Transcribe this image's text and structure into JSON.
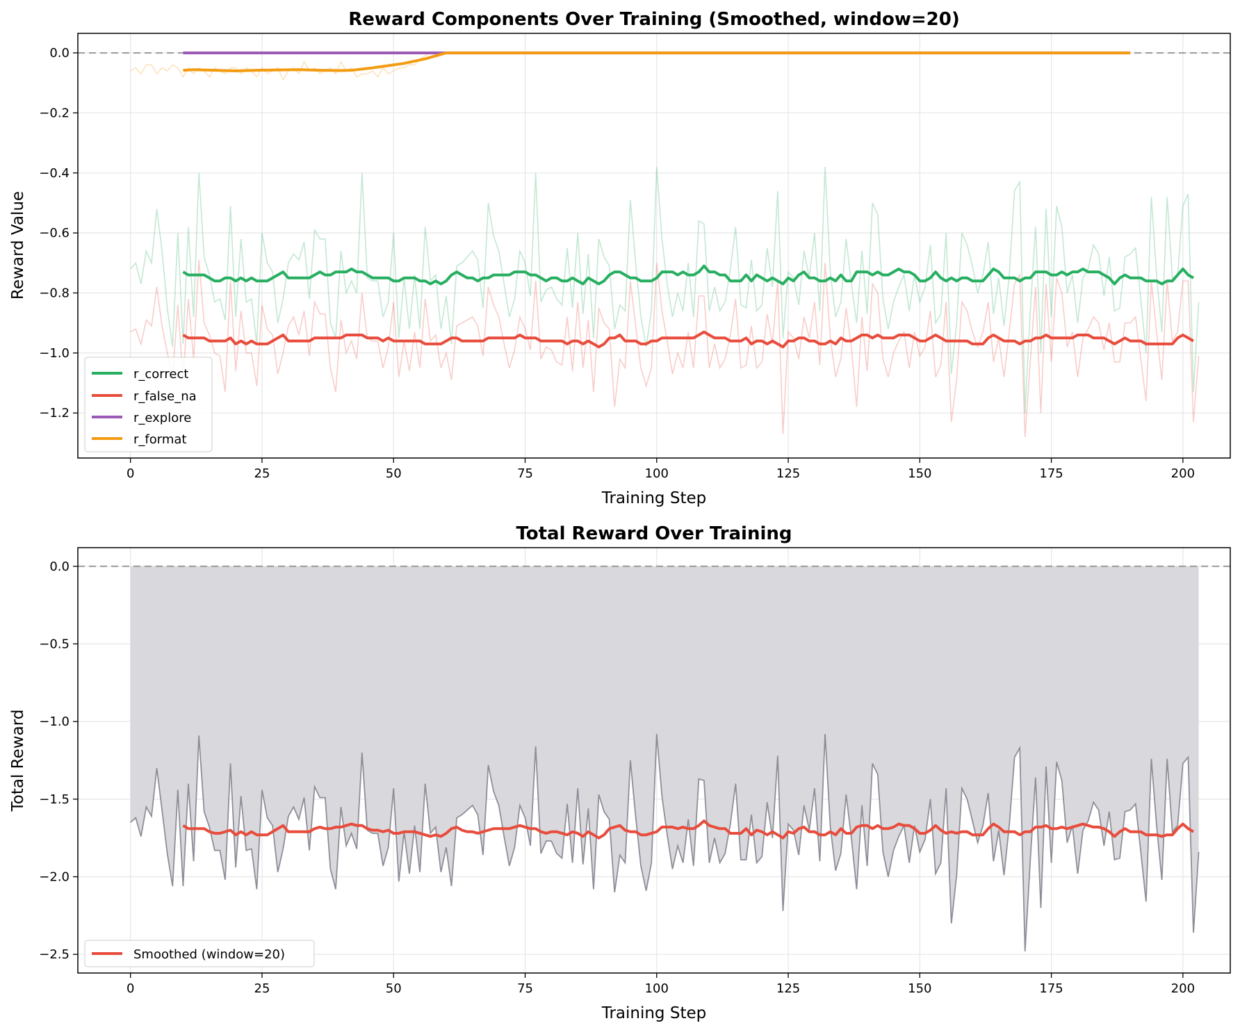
{
  "chart_data": [
    {
      "type": "line",
      "title": "Reward Components Over Training (Smoothed, window=20)",
      "xlabel": "Training Step",
      "ylabel": "Reward Value",
      "xlim": [
        -10,
        209
      ],
      "ylim": [
        -1.35,
        0.065
      ],
      "xticks": [
        0,
        25,
        50,
        75,
        100,
        125,
        150,
        175,
        200
      ],
      "yticks": [
        0.0,
        -0.2,
        -0.4,
        -0.6,
        -0.8,
        -1.0,
        -1.2
      ],
      "ytick_labels": [
        "0.0",
        "−0.2",
        "−0.4",
        "−0.6",
        "−0.8",
        "−1.0",
        "−1.2"
      ],
      "grid": true,
      "legend_position": "lower-left",
      "reference_line": 0.0,
      "smoothing_window": 20,
      "series": [
        {
          "name": "r_correct",
          "color": "#27ae60",
          "raw": [
            -0.72,
            -0.7,
            -0.77,
            -0.66,
            -0.7,
            -0.52,
            -0.66,
            -0.85,
            -0.98,
            -0.6,
            -0.97,
            -0.58,
            -0.88,
            -0.4,
            -0.68,
            -0.74,
            -0.83,
            -0.82,
            -0.89,
            -0.51,
            -0.88,
            -0.62,
            -0.83,
            -0.82,
            -0.97,
            -0.6,
            -0.7,
            -0.73,
            -0.9,
            -0.82,
            -0.7,
            -0.67,
            -0.69,
            -0.63,
            -0.82,
            -0.59,
            -0.62,
            -0.62,
            -0.9,
            -0.95,
            -0.66,
            -0.8,
            -0.76,
            -0.8,
            -0.4,
            -0.75,
            -0.76,
            -0.76,
            -0.88,
            -0.83,
            -0.6,
            -0.95,
            -0.75,
            -0.92,
            -0.74,
            -0.92,
            -0.58,
            -0.76,
            -0.74,
            -0.92,
            -0.81,
            -0.97,
            -0.71,
            -0.7,
            -0.68,
            -0.66,
            -0.69,
            -0.85,
            -0.5,
            -0.61,
            -0.66,
            -0.77,
            -0.88,
            -0.82,
            -0.66,
            -0.7,
            -0.81,
            -0.4,
            -0.83,
            -0.79,
            -0.78,
            -0.82,
            -0.84,
            -0.65,
            -0.85,
            -0.6,
            -0.87,
            -0.67,
            -0.95,
            -0.62,
            -0.68,
            -0.71,
            -0.92,
            -0.84,
            -0.86,
            -0.49,
            -0.7,
            -0.88,
            -0.98,
            -0.86,
            -0.38,
            -0.62,
            -0.77,
            -0.88,
            -0.8,
            -0.86,
            -0.7,
            -0.88,
            -0.56,
            -0.57,
            -0.86,
            -0.78,
            -0.86,
            -0.83,
            -0.72,
            -0.58,
            -0.84,
            -0.85,
            -0.69,
            -0.86,
            -0.84,
            -0.65,
            -0.78,
            -0.46,
            -0.95,
            -0.73,
            -0.75,
            -0.84,
            -0.66,
            -0.75,
            -0.6,
            -0.86,
            -0.38,
            -0.73,
            -0.88,
            -0.83,
            -0.62,
            -0.77,
            -0.9,
            -0.66,
            -0.87,
            -0.5,
            -0.54,
            -0.82,
            -0.92,
            -0.83,
            -0.78,
            -0.74,
            -0.86,
            -0.74,
            -0.83,
            -0.78,
            -0.64,
            -0.9,
            -0.87,
            -0.6,
            -1.07,
            -0.9,
            -0.6,
            -0.64,
            -0.71,
            -0.8,
            -0.74,
            -0.63,
            -0.87,
            -0.75,
            -0.91,
            -0.74,
            -0.46,
            -0.43,
            -1.2,
            -0.86,
            -0.58,
            -1.0,
            -0.52,
            -0.88,
            -0.51,
            -0.58,
            -0.8,
            -0.74,
            -0.9,
            -0.75,
            -0.72,
            -0.64,
            -0.67,
            -0.81,
            -0.68,
            -0.86,
            -0.85,
            -0.68,
            -0.67,
            -0.65,
            -0.82,
            -1.0,
            -0.48,
            -0.74,
            -0.93,
            -0.48,
            -0.75,
            -0.74,
            -0.51,
            -0.47,
            -1.13,
            -0.83
          ],
          "smoothed": [
            -0.73,
            -0.74,
            -0.74,
            -0.74,
            -0.74,
            -0.75,
            -0.76,
            -0.76,
            -0.75,
            -0.75,
            -0.76,
            -0.75,
            -0.76,
            -0.75,
            -0.76,
            -0.76,
            -0.76,
            -0.75,
            -0.74,
            -0.73,
            -0.75,
            -0.75,
            -0.75,
            -0.75,
            -0.75,
            -0.74,
            -0.73,
            -0.74,
            -0.74,
            -0.73,
            -0.73,
            -0.73,
            -0.72,
            -0.73,
            -0.73,
            -0.74,
            -0.75,
            -0.75,
            -0.75,
            -0.75,
            -0.76,
            -0.76,
            -0.75,
            -0.75,
            -0.75,
            -0.76,
            -0.76,
            -0.77,
            -0.76,
            -0.77,
            -0.76,
            -0.74,
            -0.73,
            -0.74,
            -0.75,
            -0.75,
            -0.76,
            -0.75,
            -0.75,
            -0.74,
            -0.74,
            -0.74,
            -0.74,
            -0.73,
            -0.73,
            -0.73,
            -0.74,
            -0.74,
            -0.75,
            -0.76,
            -0.75,
            -0.75,
            -0.76,
            -0.76,
            -0.75,
            -0.76,
            -0.77,
            -0.75,
            -0.76,
            -0.77,
            -0.76,
            -0.74,
            -0.73,
            -0.73,
            -0.74,
            -0.75,
            -0.75,
            -0.76,
            -0.76,
            -0.76,
            -0.75,
            -0.73,
            -0.73,
            -0.73,
            -0.74,
            -0.73,
            -0.74,
            -0.74,
            -0.73,
            -0.71,
            -0.73,
            -0.73,
            -0.74,
            -0.74,
            -0.76,
            -0.76,
            -0.76,
            -0.74,
            -0.76,
            -0.74,
            -0.75,
            -0.76,
            -0.75,
            -0.76,
            -0.77,
            -0.75,
            -0.76,
            -0.74,
            -0.73,
            -0.75,
            -0.75,
            -0.76,
            -0.76,
            -0.75,
            -0.76,
            -0.74,
            -0.76,
            -0.76,
            -0.73,
            -0.73,
            -0.73,
            -0.74,
            -0.73,
            -0.74,
            -0.74,
            -0.73,
            -0.72,
            -0.73,
            -0.73,
            -0.74,
            -0.76,
            -0.76,
            -0.75,
            -0.73,
            -0.75,
            -0.76,
            -0.75,
            -0.76,
            -0.75,
            -0.75,
            -0.76,
            -0.76,
            -0.76,
            -0.74,
            -0.72,
            -0.73,
            -0.75,
            -0.75,
            -0.75,
            -0.76,
            -0.75,
            -0.75,
            -0.73,
            -0.73,
            -0.73,
            -0.74,
            -0.74,
            -0.73,
            -0.74,
            -0.73,
            -0.73,
            -0.72,
            -0.73,
            -0.73,
            -0.73,
            -0.74,
            -0.75,
            -0.77,
            -0.75,
            -0.74,
            -0.75,
            -0.75,
            -0.75,
            -0.76,
            -0.76,
            -0.76,
            -0.77,
            -0.76,
            -0.76,
            -0.74,
            -0.72,
            -0.74,
            -0.75
          ]
        },
        {
          "name": "r_false_na",
          "color": "#e74c3c",
          "raw": [
            -0.93,
            -0.92,
            -0.97,
            -0.89,
            -0.91,
            -0.78,
            -0.91,
            -1.0,
            -1.08,
            -0.84,
            -1.09,
            -0.82,
            -1.02,
            -0.69,
            -0.9,
            -0.94,
            -1.0,
            -1.01,
            -1.13,
            -0.76,
            -1.06,
            -0.86,
            -1.0,
            -1.0,
            -1.11,
            -0.84,
            -0.92,
            -0.94,
            -1.07,
            -1.0,
            -0.91,
            -0.88,
            -0.94,
            -0.86,
            -1.01,
            -0.83,
            -0.87,
            -0.87,
            -1.05,
            -1.13,
            -0.89,
            -1.0,
            -0.96,
            -1.02,
            -0.8,
            -0.95,
            -0.96,
            -0.96,
            -1.05,
            -0.98,
            -0.83,
            -1.08,
            -0.96,
            -1.06,
            -0.93,
            -1.05,
            -0.82,
            -0.96,
            -0.94,
            -1.05,
            -1.0,
            -1.09,
            -0.91,
            -0.9,
            -0.89,
            -0.88,
            -0.91,
            -1.01,
            -0.78,
            -0.84,
            -0.88,
            -0.97,
            -1.05,
            -0.99,
            -0.88,
            -0.92,
            -0.99,
            -0.76,
            -1.02,
            -0.98,
            -0.99,
            -1.03,
            -1.04,
            -0.88,
            -1.06,
            -0.83,
            -1.05,
            -0.89,
            -1.13,
            -0.85,
            -0.9,
            -0.92,
            -1.18,
            -1.02,
            -1.05,
            -0.76,
            -0.91,
            -1.05,
            -1.11,
            -1.05,
            -0.7,
            -0.86,
            -0.96,
            -1.07,
            -1.0,
            -1.05,
            -0.93,
            -1.05,
            -0.81,
            -0.81,
            -1.05,
            -0.97,
            -1.05,
            -1.02,
            -0.94,
            -0.82,
            -1.05,
            -1.04,
            -0.91,
            -1.05,
            -1.03,
            -0.87,
            -0.97,
            -0.76,
            -1.27,
            -0.93,
            -0.95,
            -1.02,
            -0.88,
            -0.95,
            -0.83,
            -1.04,
            -0.7,
            -0.95,
            -1.08,
            -1.02,
            -0.85,
            -0.98,
            -1.18,
            -0.88,
            -1.06,
            -0.77,
            -0.8,
            -1.02,
            -1.08,
            -1.0,
            -0.96,
            -0.93,
            -1.05,
            -0.93,
            -1.01,
            -0.98,
            -0.86,
            -1.08,
            -1.04,
            -0.83,
            -1.23,
            -1.09,
            -0.83,
            -0.86,
            -0.93,
            -0.98,
            -0.93,
            -0.83,
            -1.03,
            -0.95,
            -1.08,
            -0.93,
            -0.77,
            -0.74,
            -1.28,
            -1.03,
            -0.78,
            -1.2,
            -0.77,
            -1.03,
            -0.75,
            -0.8,
            -0.98,
            -0.93,
            -1.08,
            -0.95,
            -0.92,
            -0.88,
            -0.9,
            -0.99,
            -0.9,
            -1.03,
            -1.03,
            -0.9,
            -0.9,
            -0.88,
            -1.02,
            -1.16,
            -0.76,
            -0.93,
            -1.09,
            -0.76,
            -0.96,
            -0.93,
            -0.76,
            -0.76,
            -1.23,
            -1.01
          ],
          "smoothed": [
            -0.94,
            -0.95,
            -0.95,
            -0.95,
            -0.95,
            -0.96,
            -0.96,
            -0.96,
            -0.96,
            -0.95,
            -0.97,
            -0.96,
            -0.97,
            -0.96,
            -0.97,
            -0.97,
            -0.97,
            -0.96,
            -0.95,
            -0.94,
            -0.96,
            -0.96,
            -0.96,
            -0.96,
            -0.96,
            -0.95,
            -0.95,
            -0.95,
            -0.95,
            -0.95,
            -0.95,
            -0.94,
            -0.94,
            -0.94,
            -0.94,
            -0.95,
            -0.95,
            -0.95,
            -0.96,
            -0.95,
            -0.96,
            -0.96,
            -0.96,
            -0.96,
            -0.96,
            -0.96,
            -0.97,
            -0.97,
            -0.97,
            -0.97,
            -0.96,
            -0.95,
            -0.95,
            -0.96,
            -0.96,
            -0.96,
            -0.96,
            -0.96,
            -0.95,
            -0.95,
            -0.95,
            -0.95,
            -0.95,
            -0.95,
            -0.94,
            -0.95,
            -0.95,
            -0.95,
            -0.96,
            -0.96,
            -0.96,
            -0.96,
            -0.96,
            -0.97,
            -0.96,
            -0.96,
            -0.97,
            -0.96,
            -0.97,
            -0.98,
            -0.97,
            -0.95,
            -0.95,
            -0.94,
            -0.96,
            -0.96,
            -0.96,
            -0.97,
            -0.97,
            -0.96,
            -0.96,
            -0.95,
            -0.95,
            -0.95,
            -0.95,
            -0.95,
            -0.95,
            -0.95,
            -0.94,
            -0.93,
            -0.94,
            -0.95,
            -0.95,
            -0.95,
            -0.96,
            -0.96,
            -0.96,
            -0.95,
            -0.97,
            -0.96,
            -0.96,
            -0.97,
            -0.96,
            -0.97,
            -0.98,
            -0.96,
            -0.96,
            -0.95,
            -0.95,
            -0.96,
            -0.96,
            -0.97,
            -0.97,
            -0.96,
            -0.97,
            -0.95,
            -0.96,
            -0.96,
            -0.95,
            -0.94,
            -0.94,
            -0.95,
            -0.94,
            -0.95,
            -0.95,
            -0.95,
            -0.94,
            -0.94,
            -0.94,
            -0.95,
            -0.96,
            -0.96,
            -0.95,
            -0.94,
            -0.95,
            -0.96,
            -0.96,
            -0.96,
            -0.96,
            -0.96,
            -0.97,
            -0.97,
            -0.97,
            -0.95,
            -0.94,
            -0.95,
            -0.96,
            -0.96,
            -0.96,
            -0.97,
            -0.96,
            -0.96,
            -0.95,
            -0.95,
            -0.94,
            -0.95,
            -0.95,
            -0.95,
            -0.95,
            -0.95,
            -0.94,
            -0.94,
            -0.94,
            -0.95,
            -0.95,
            -0.95,
            -0.96,
            -0.97,
            -0.96,
            -0.95,
            -0.96,
            -0.96,
            -0.96,
            -0.97,
            -0.97,
            -0.97,
            -0.97,
            -0.97,
            -0.97,
            -0.95,
            -0.94,
            -0.95,
            -0.96
          ]
        },
        {
          "name": "r_explore",
          "color": "#9b59b6",
          "smoothed_start": 10,
          "smoothed_end": 190,
          "value": 0.0
        },
        {
          "name": "r_format",
          "color": "#f39c12",
          "raw": [
            -0.06,
            -0.05,
            -0.07,
            -0.04,
            -0.04,
            -0.07,
            -0.05,
            -0.06,
            -0.04,
            -0.05,
            -0.08,
            -0.05,
            -0.07,
            -0.05,
            -0.06,
            -0.08,
            -0.05,
            -0.06,
            -0.07,
            -0.05,
            -0.05,
            -0.07,
            -0.05,
            -0.06,
            -0.08,
            -0.05,
            -0.07,
            -0.06,
            -0.05,
            -0.09,
            -0.06,
            -0.05,
            -0.07,
            -0.03,
            -0.06,
            -0.05,
            -0.07,
            -0.06,
            -0.05,
            -0.07,
            -0.03,
            -0.06,
            -0.05,
            -0.08,
            -0.07,
            -0.07,
            -0.06,
            -0.08,
            -0.05,
            -0.07,
            -0.06,
            -0.05,
            -0.05,
            -0.04,
            -0.04,
            -0.02,
            -0.01,
            0.0,
            0.0,
            0.0,
            0.0
          ],
          "smoothed_points": [
            [
              10,
              -0.058
            ],
            [
              12,
              -0.056
            ],
            [
              16,
              -0.058
            ],
            [
              20,
              -0.06
            ],
            [
              24,
              -0.058
            ],
            [
              28,
              -0.057
            ],
            [
              32,
              -0.056
            ],
            [
              36,
              -0.058
            ],
            [
              40,
              -0.059
            ],
            [
              42,
              -0.058
            ],
            [
              46,
              -0.05
            ],
            [
              50,
              -0.04
            ],
            [
              52,
              -0.035
            ],
            [
              56,
              -0.02
            ],
            [
              60,
              0.0
            ],
            [
              190,
              0.0
            ]
          ]
        }
      ],
      "legend": [
        "r_correct",
        "r_false_na",
        "r_explore",
        "r_format"
      ]
    },
    {
      "type": "area",
      "title": "Total Reward Over Training",
      "xlabel": "Training Step",
      "ylabel": "Total Reward",
      "xlim": [
        -10,
        209
      ],
      "ylim": [
        -2.62,
        0.12
      ],
      "xticks": [
        0,
        25,
        50,
        75,
        100,
        125,
        150,
        175,
        200
      ],
      "yticks": [
        0.0,
        -0.5,
        -1.0,
        -1.5,
        -2.0,
        -2.5
      ],
      "ytick_labels": [
        "0.0",
        "−0.5",
        "−1.0",
        "−1.5",
        "−2.0",
        "−2.5"
      ],
      "grid": true,
      "legend_position": "lower-left",
      "reference_line": 0.0,
      "raw_color": "#8e8e99",
      "fill_color": "#d9d9dd",
      "series": [
        {
          "name": "Smoothed (window=20)",
          "color": "#e74c3c",
          "smoothed_start": 10
        }
      ],
      "legend": [
        "Smoothed (window=20)"
      ]
    }
  ]
}
